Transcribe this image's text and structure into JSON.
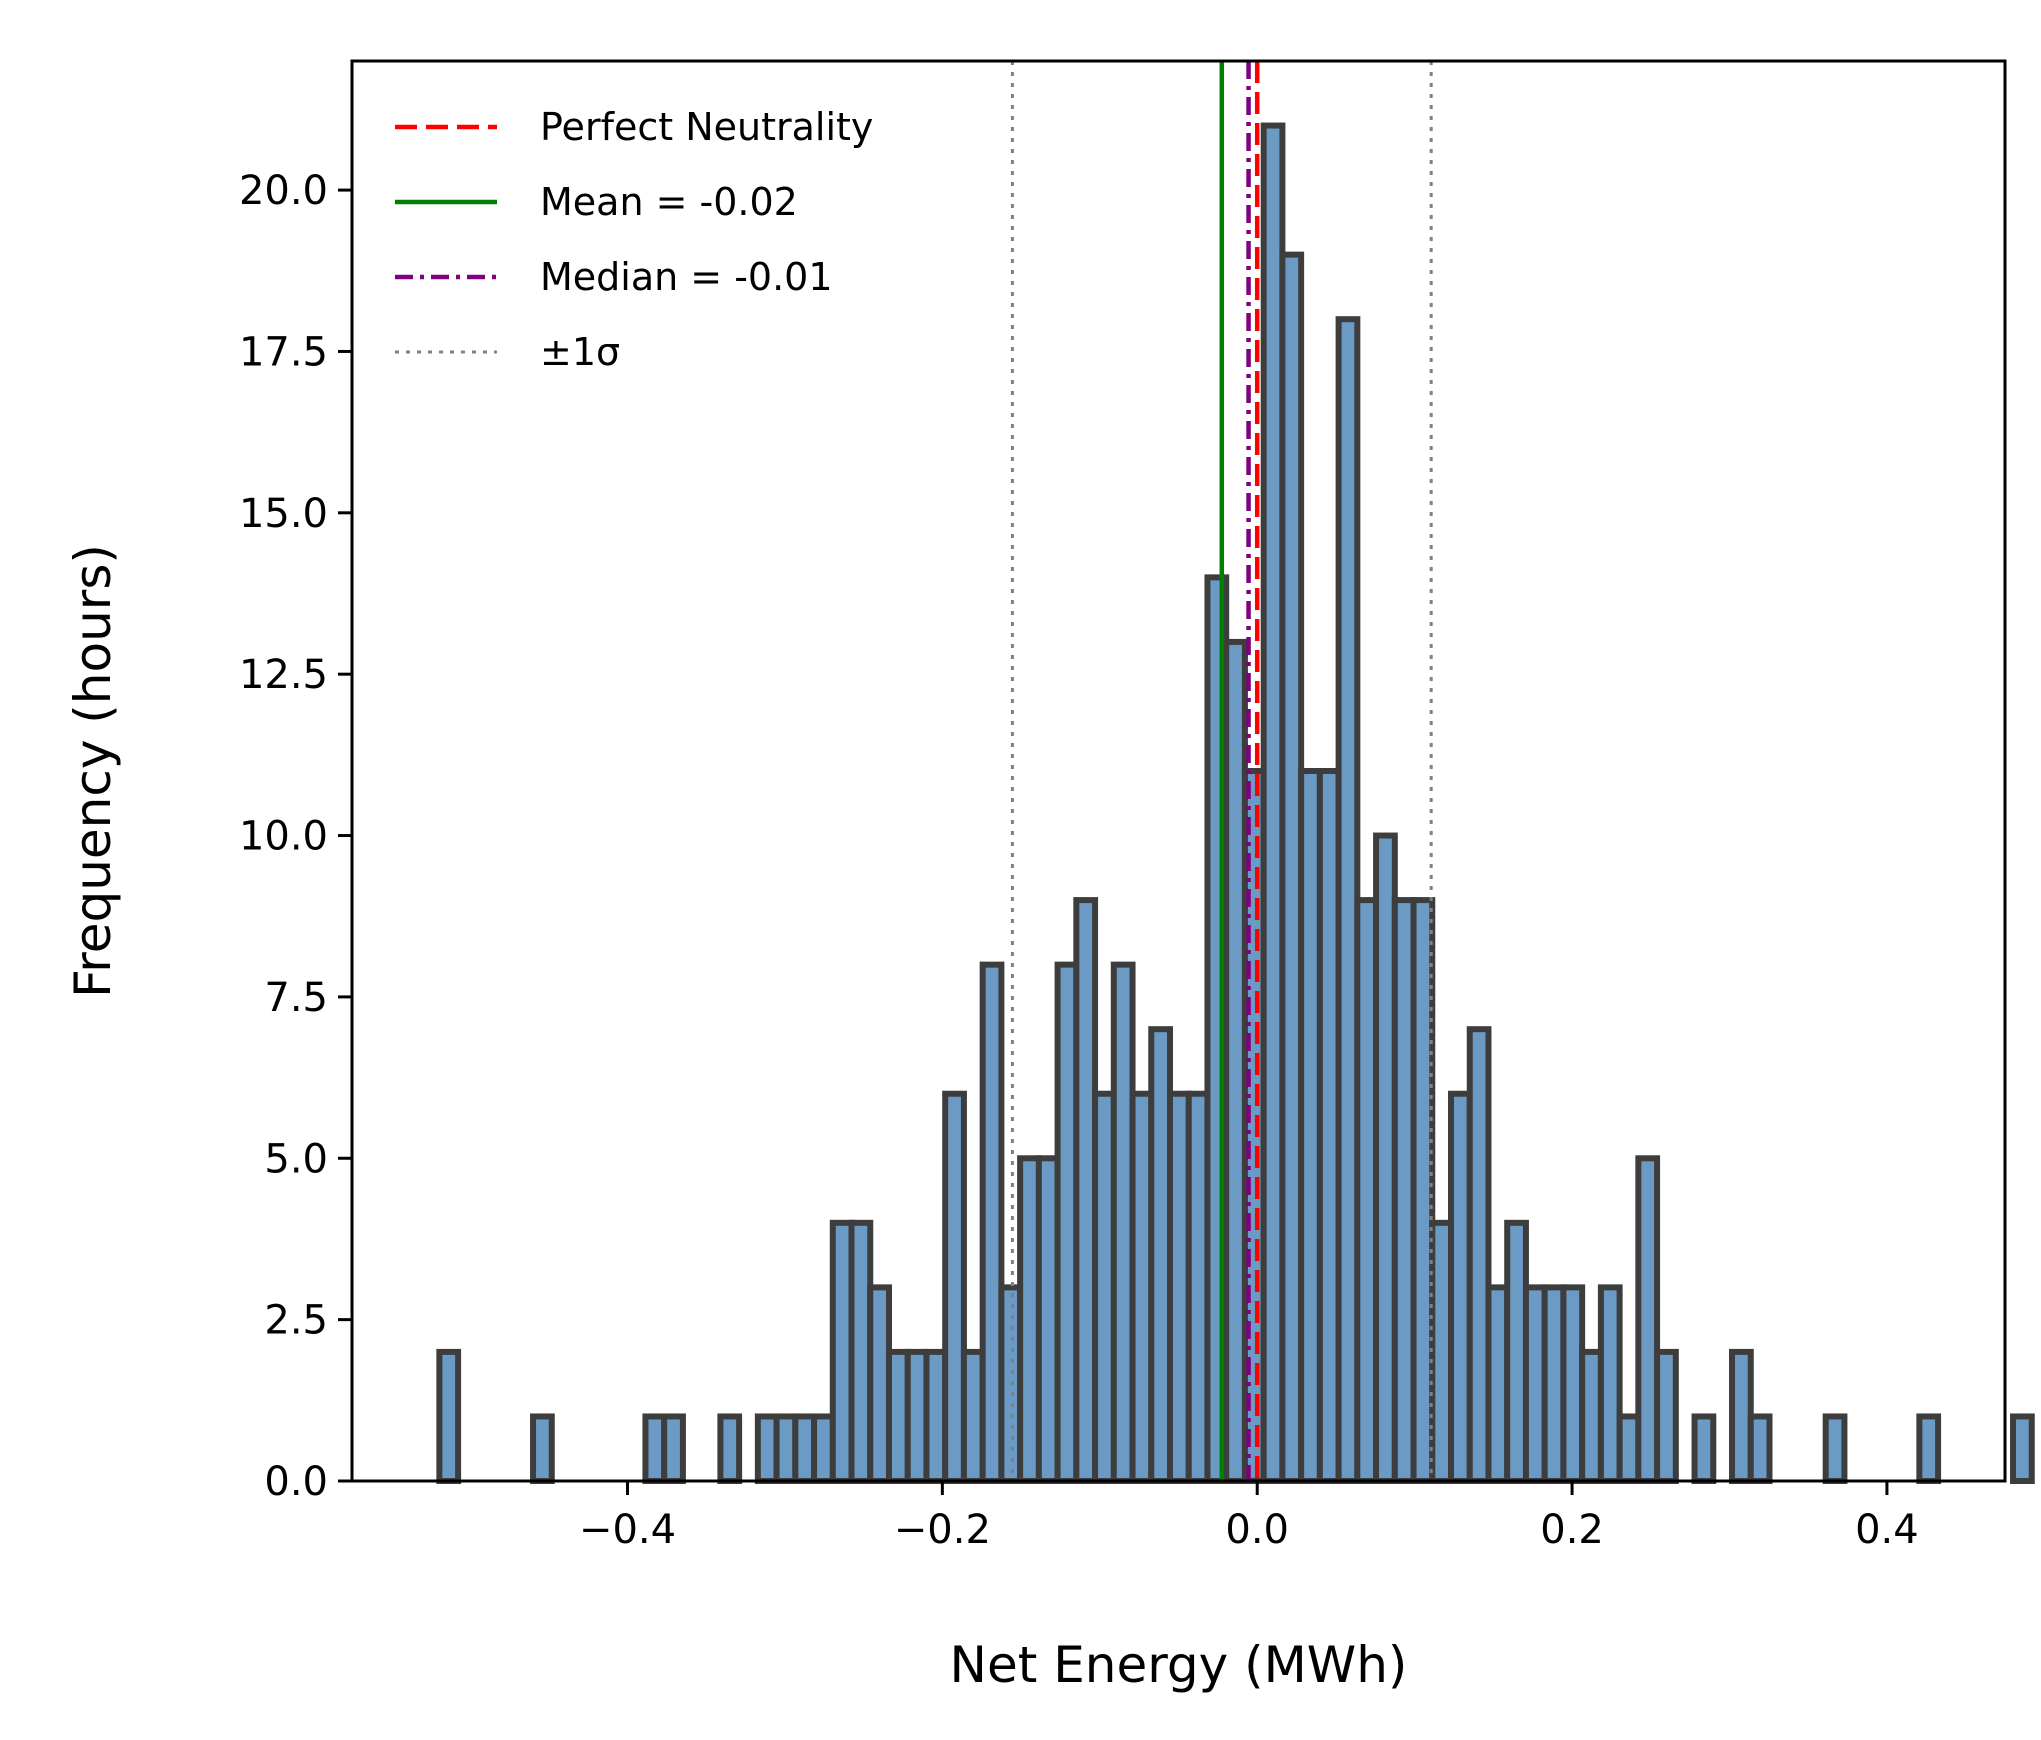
{
  "chart_data": {
    "type": "histogram",
    "xlabel": "Net Energy (MWh)",
    "ylabel": "Frequency (hours)",
    "xlim": [
      -0.575,
      0.475
    ],
    "ylim": [
      0,
      22
    ],
    "x_ticks": [
      -0.4,
      -0.2,
      0.0,
      0.2,
      0.4
    ],
    "x_tick_labels": [
      "−0.4",
      "−0.2",
      "0.0",
      "0.2",
      "0.4"
    ],
    "y_ticks": [
      0,
      2.5,
      5,
      7.5,
      10,
      12.5,
      15,
      17.5,
      20
    ],
    "y_tick_labels": [
      "0.0",
      "2.5",
      "5.0",
      "7.5",
      "10.0",
      "12.5",
      "15.0",
      "17.5",
      "20.0"
    ],
    "bin_start": -0.5195,
    "bin_width": 0.0119,
    "counts": [
      2,
      0,
      0,
      0,
      0,
      1,
      0,
      0,
      0,
      0,
      0,
      1,
      1,
      0,
      0,
      1,
      0,
      1,
      1,
      1,
      1,
      4,
      4,
      3,
      2,
      2,
      2,
      6,
      2,
      8,
      3,
      5,
      5,
      8,
      9,
      6,
      8,
      6,
      7,
      6,
      6,
      14,
      13,
      11,
      21,
      19,
      11,
      11,
      18,
      9,
      10,
      9,
      9,
      4,
      6,
      7,
      3,
      4,
      3,
      3,
      3,
      2,
      3,
      1,
      5,
      2,
      0,
      1,
      0,
      2,
      1,
      0,
      0,
      0,
      1,
      0,
      0,
      0,
      0,
      1,
      0,
      0,
      0,
      0,
      1
    ],
    "bar_color": "#6b9ac4",
    "bar_edge_color": "#3d3d3d",
    "grid": false,
    "legend_position": "top-left",
    "reference_lines": [
      {
        "name": "Perfect Neutrality",
        "x": 0.0,
        "color": "#ff0000",
        "style": "dashed"
      },
      {
        "name": "Mean = -0.02",
        "x": -0.0225,
        "color": "#008000",
        "style": "solid"
      },
      {
        "name": "Median = -0.01",
        "x": -0.0055,
        "color": "#800080",
        "style": "dashdot"
      },
      {
        "name": "±1σ",
        "x": [
          -0.1555,
          0.1105
        ],
        "color": "#808080",
        "style": "dotted"
      }
    ]
  }
}
